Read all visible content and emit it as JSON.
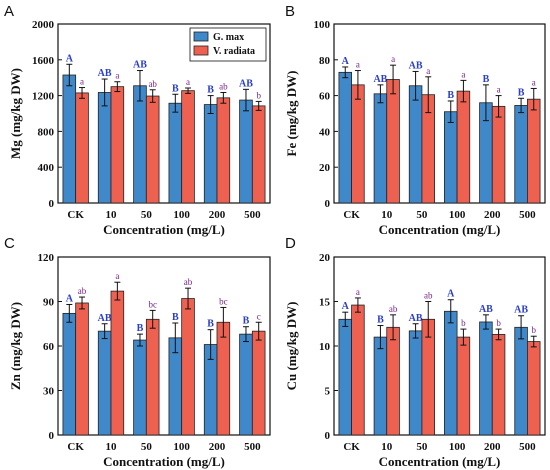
{
  "figure": {
    "colors": {
      "series1": "#3f88c9",
      "series2": "#ee6150",
      "sigA": "#2a3fc8",
      "sigB": "#7b1e8c"
    }
  },
  "chart_data": [
    {
      "type": "bar",
      "panel": "A",
      "categories": [
        "CK",
        "10",
        "50",
        "100",
        "200",
        "500"
      ],
      "xlabel": "Concentration (mg/L)",
      "ylabel": "Mg (mg/kg DW)",
      "ylim": [
        0,
        2000
      ],
      "yticks": [
        0,
        400,
        800,
        1200,
        1600,
        2000
      ],
      "legend": {
        "placement": "top-right",
        "entries": [
          "G. max",
          "V. radiata"
        ]
      },
      "series": [
        {
          "name": "G. max",
          "values": [
            1430,
            1235,
            1310,
            1115,
            1100,
            1150
          ],
          "errors": [
            120,
            150,
            170,
            100,
            100,
            120
          ],
          "letters": [
            "A",
            "AB",
            "AB",
            "B",
            "B",
            "AB"
          ]
        },
        {
          "name": "V. radiata",
          "values": [
            1230,
            1300,
            1195,
            1255,
            1175,
            1085
          ],
          "errors": [
            60,
            55,
            70,
            30,
            60,
            50
          ],
          "letters": [
            "a",
            "a",
            "ab",
            "a",
            "ab",
            "b"
          ]
        }
      ]
    },
    {
      "type": "bar",
      "panel": "B",
      "categories": [
        "CK",
        "10",
        "50",
        "100",
        "200",
        "500"
      ],
      "xlabel": "Concentration (mg/L)",
      "ylabel": "Fe (mg/kg DW)",
      "ylim": [
        0,
        100
      ],
      "yticks": [
        0,
        20,
        40,
        60,
        80,
        100
      ],
      "series": [
        {
          "name": "G. max",
          "values": [
            73,
            61,
            65.5,
            51,
            56,
            54.5
          ],
          "errors": [
            3,
            5,
            8,
            6,
            10,
            4
          ],
          "letters": [
            "A",
            "AB",
            "AB",
            "B",
            "B",
            "B"
          ]
        },
        {
          "name": "V. radiata",
          "values": [
            66,
            69,
            60.5,
            62.5,
            54,
            58
          ],
          "errors": [
            8,
            8,
            10,
            6,
            6,
            6
          ],
          "letters": [
            "a",
            "a",
            "a",
            "a",
            "a",
            "a"
          ]
        }
      ]
    },
    {
      "type": "bar",
      "panel": "C",
      "categories": [
        "CK",
        "10",
        "50",
        "100",
        "200",
        "500"
      ],
      "xlabel": "Concentration (mg/L)",
      "ylabel": "Zn (mg/kg DW)",
      "ylim": [
        0,
        120
      ],
      "yticks": [
        0,
        30,
        60,
        90,
        120
      ],
      "series": [
        {
          "name": "G. max",
          "values": [
            82,
            70,
            64,
            65.5,
            61,
            68
          ],
          "errors": [
            6,
            5,
            4,
            10,
            10,
            5
          ],
          "letters": [
            "A",
            "AB",
            "B",
            "B",
            "B",
            "B"
          ]
        },
        {
          "name": "V. radiata",
          "values": [
            89,
            97,
            78,
            92,
            76,
            70
          ],
          "errors": [
            4,
            6,
            6,
            7,
            10,
            6
          ],
          "letters": [
            "ab",
            "a",
            "bc",
            "ab",
            "bc",
            "c"
          ]
        }
      ]
    },
    {
      "type": "bar",
      "panel": "D",
      "categories": [
        "CK",
        "10",
        "50",
        "100",
        "200",
        "500"
      ],
      "xlabel": "Concentration (mg/L)",
      "ylabel": "Cu (mg/kg DW)",
      "ylim": [
        0,
        20
      ],
      "yticks": [
        0,
        5,
        10,
        15,
        20
      ],
      "series": [
        {
          "name": "G. max",
          "values": [
            13,
            11,
            11.7,
            13.9,
            12.7,
            12.1
          ],
          "errors": [
            0.8,
            1.3,
            0.8,
            1.3,
            0.8,
            1.3
          ],
          "letters": [
            "A",
            "B",
            "AB",
            "A",
            "AB",
            "AB"
          ]
        },
        {
          "name": "V. radiata",
          "values": [
            14.6,
            12.1,
            13,
            11,
            11.3,
            10.5
          ],
          "errors": [
            0.8,
            1.4,
            2.0,
            0.9,
            0.6,
            0.6
          ],
          "letters": [
            "a",
            "ab",
            "ab",
            "b",
            "b",
            "b"
          ]
        }
      ]
    }
  ]
}
